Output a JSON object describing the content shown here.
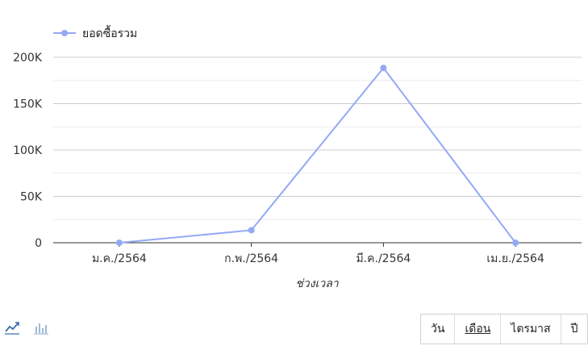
{
  "chart_data": {
    "type": "line",
    "categories": [
      "ม.ค./2564",
      "ก.พ./2564",
      "มี.ค./2564",
      "เม.ย./2564"
    ],
    "series": [
      {
        "name": "ยอดซื้อรวม",
        "values": [
          0,
          13500,
          188500,
          0
        ],
        "color": "#93a9f5"
      }
    ],
    "yticks": [
      "0",
      "50K",
      "100K",
      "150K",
      "200K"
    ],
    "ylim": [
      0,
      200000
    ],
    "xlabel": "ช่วงเวลา",
    "legend_position": "top-left",
    "grid": true
  },
  "controls": {
    "chart_type_icons": [
      "line-chart-icon",
      "bar-chart-icon"
    ],
    "periods": [
      {
        "label": "วัน",
        "active": false
      },
      {
        "label": "เดือน",
        "active": true
      },
      {
        "label": "ไตรมาส",
        "active": false
      },
      {
        "label": "ปี",
        "active": false
      }
    ]
  }
}
